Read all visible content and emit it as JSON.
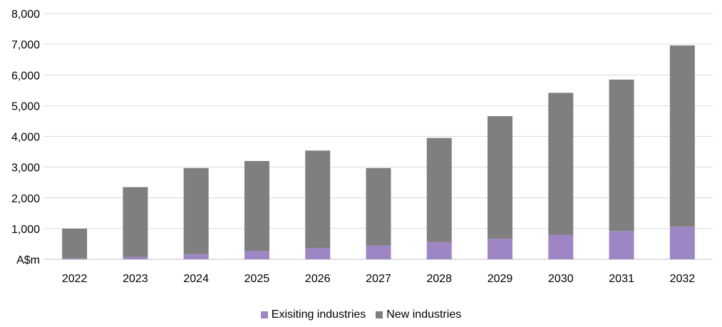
{
  "chart_data": {
    "type": "bar",
    "stacked": true,
    "title": "",
    "xlabel": "",
    "ylabel": "",
    "ylim": [
      0,
      8000
    ],
    "yticks": [
      0,
      1000,
      2000,
      3000,
      4000,
      5000,
      6000,
      7000,
      8000
    ],
    "ytick_labels": [
      "A$m",
      "1,000",
      "2,000",
      "3,000",
      "4,000",
      "5,000",
      "6,000",
      "7,000",
      "8,000"
    ],
    "grid": true,
    "legend_position": "bottom",
    "categories": [
      "2022",
      "2023",
      "2024",
      "2025",
      "2026",
      "2027",
      "2028",
      "2029",
      "2030",
      "2031",
      "2032"
    ],
    "series": [
      {
        "name": "Exisiting industries",
        "color": "#9e86c4",
        "values": [
          30,
          80,
          170,
          270,
          370,
          450,
          560,
          670,
          790,
          920,
          1060
        ]
      },
      {
        "name": "New industries",
        "color": "#7f7f7f",
        "values": [
          970,
          2270,
          2800,
          2930,
          3170,
          2520,
          3390,
          3990,
          4630,
          4930,
          5900
        ]
      }
    ]
  }
}
